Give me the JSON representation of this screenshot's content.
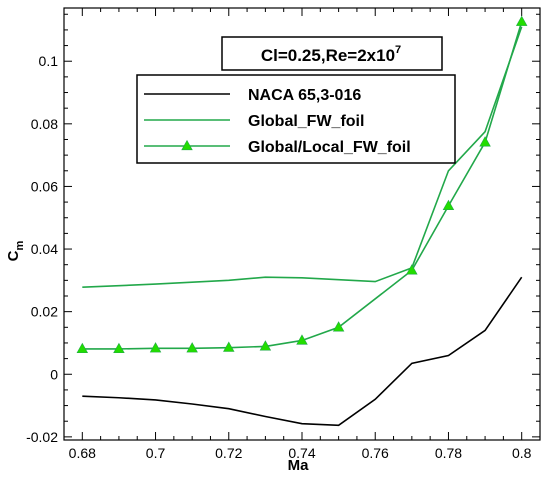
{
  "chart_data": {
    "type": "line",
    "xlabel": "Ma",
    "ylabel_main": "C",
    "ylabel_sub": "m",
    "xlim": [
      0.675,
      0.805
    ],
    "ylim": [
      -0.021,
      0.117
    ],
    "xticks": [
      0.68,
      0.7,
      0.72,
      0.74,
      0.76,
      0.78,
      0.8
    ],
    "xtick_labels": [
      "0.68",
      "0.7",
      "0.72",
      "0.74",
      "0.76",
      "0.78",
      "0.8"
    ],
    "yticks": [
      -0.02,
      0,
      0.02,
      0.04,
      0.06,
      0.08,
      0.1
    ],
    "ytick_labels": [
      "-0.02",
      "0",
      "0.02",
      "0.04",
      "0.06",
      "0.08",
      "0.1"
    ],
    "annotation": {
      "prefix": "Cl=0.25,Re=2x10",
      "exponent": "7"
    },
    "legend_position": "top-center",
    "series": [
      {
        "name": "NACA 65,3-016",
        "color": "#000000",
        "marker": "none",
        "x": [
          0.68,
          0.69,
          0.7,
          0.71,
          0.72,
          0.73,
          0.74,
          0.75,
          0.76,
          0.77,
          0.78,
          0.79,
          0.8
        ],
        "y": [
          -0.007,
          -0.0075,
          -0.0082,
          -0.0095,
          -0.011,
          -0.0135,
          -0.0158,
          -0.0163,
          -0.008,
          0.0035,
          0.006,
          0.014,
          0.031
        ]
      },
      {
        "name": "Global_FW_foil",
        "color": "#22a84a",
        "marker": "none",
        "x": [
          0.68,
          0.7,
          0.72,
          0.73,
          0.74,
          0.76,
          0.77,
          0.78,
          0.79,
          0.8
        ],
        "y": [
          0.0278,
          0.0288,
          0.03,
          0.031,
          0.0308,
          0.0296,
          0.034,
          0.065,
          0.0775,
          0.111
        ]
      },
      {
        "name": "Global/Local_FW_foil",
        "color": "#22a84a",
        "marker": "triangle",
        "marker_color": "#22dd00",
        "x": [
          0.68,
          0.69,
          0.7,
          0.71,
          0.72,
          0.73,
          0.74,
          0.75,
          0.77,
          0.78,
          0.79,
          0.8
        ],
        "y": [
          0.0081,
          0.0081,
          0.0083,
          0.0083,
          0.0085,
          0.0089,
          0.0108,
          0.015,
          0.0332,
          0.0538,
          0.0741,
          0.1126
        ]
      }
    ]
  }
}
